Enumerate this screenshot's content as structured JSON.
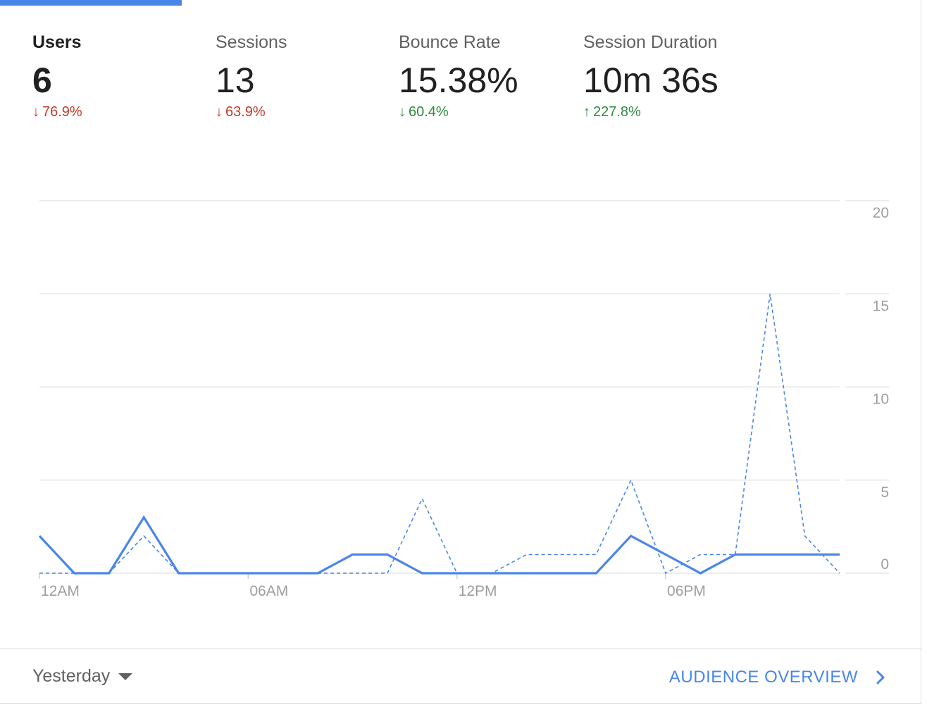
{
  "metrics": [
    {
      "label": "Users",
      "value": "6",
      "change": "76.9%",
      "direction": "down",
      "color": "#c5392d"
    },
    {
      "label": "Sessions",
      "value": "13",
      "change": "63.9%",
      "direction": "down",
      "color": "#c5392d"
    },
    {
      "label": "Bounce Rate",
      "value": "15.38%",
      "change": "60.4%",
      "direction": "down",
      "color": "#2e8b3e"
    },
    {
      "label": "Session Duration",
      "value": "10m 36s",
      "change": "227.8%",
      "direction": "up",
      "color": "#2e8b3e"
    }
  ],
  "colors": {
    "accent": "#4a86e8",
    "negative": "#c5392d",
    "positive": "#2e8b3e",
    "gridline": "#e6e6e6",
    "axis_text": "#9e9e9e"
  },
  "chart_data": {
    "type": "line",
    "x": [
      "00",
      "01",
      "02",
      "03",
      "04",
      "05",
      "06",
      "07",
      "08",
      "09",
      "10",
      "11",
      "12",
      "13",
      "14",
      "15",
      "16",
      "17",
      "18",
      "19",
      "20",
      "21",
      "22",
      "23"
    ],
    "x_tick_labels": [
      "12AM",
      "06AM",
      "12PM",
      "06PM"
    ],
    "x_tick_positions": [
      0,
      6,
      12,
      18
    ],
    "y_ticks": [
      0,
      5,
      10,
      15,
      20
    ],
    "ylim": [
      0,
      20
    ],
    "y_axis_position": "right",
    "grid": true,
    "series": [
      {
        "style": "solid",
        "color": "#4a86e8",
        "values": [
          2,
          0,
          0,
          3,
          0,
          0,
          0,
          0,
          0,
          1,
          1,
          0,
          0,
          0,
          0,
          0,
          0,
          2,
          1,
          0,
          1,
          1,
          1,
          1
        ]
      },
      {
        "style": "dashed",
        "color": "#4a86e8",
        "values": [
          0,
          0,
          0,
          2,
          0,
          0,
          0,
          0,
          0,
          0,
          0,
          4,
          0,
          0,
          1,
          1,
          1,
          5,
          0,
          1,
          1,
          15,
          2,
          0
        ]
      }
    ]
  },
  "footer": {
    "date_range": "Yesterday",
    "link_label": "AUDIENCE OVERVIEW"
  }
}
